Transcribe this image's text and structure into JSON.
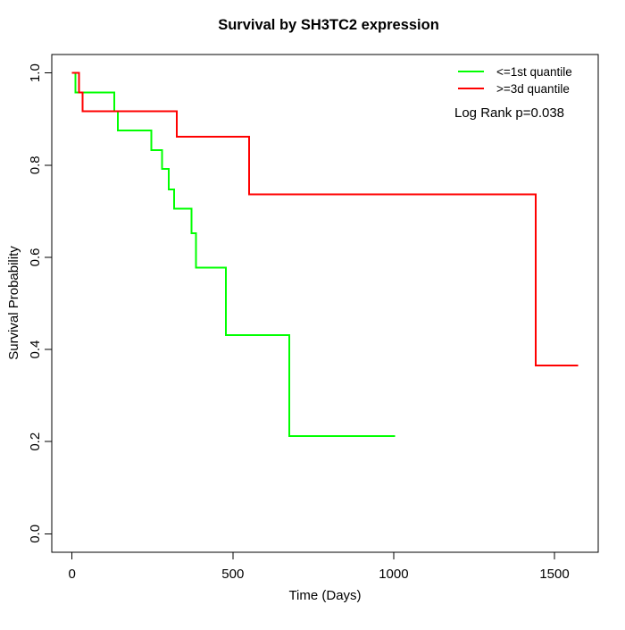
{
  "title": "Survival by SH3TC2 expression",
  "axes": {
    "x": {
      "label": "Time (Days)",
      "tick_labels": [
        "0",
        "500",
        "1000",
        "1500"
      ]
    },
    "y": {
      "label": "Survival Probability",
      "tick_labels": [
        "0.0",
        "0.2",
        "0.4",
        "0.6",
        "0.8",
        "1.0"
      ]
    }
  },
  "legend": {
    "items": [
      {
        "label": "<=1st quantile",
        "color": "#00FF00"
      },
      {
        "label": ">=3d quantile",
        "color": "#FF0000"
      }
    ]
  },
  "annotation": "Log Rank p=0.038",
  "chart_data": {
    "type": "line",
    "subtype": "kaplan-meier-step",
    "title": "Survival by SH3TC2 expression",
    "xlabel": "Time (Days)",
    "ylabel": "Survival Probability",
    "xlim": [
      -63,
      1636
    ],
    "ylim": [
      -0.04,
      1.04
    ],
    "x_ticks": [
      0,
      500,
      1000,
      1500
    ],
    "y_ticks": [
      0.0,
      0.2,
      0.4,
      0.6,
      0.8,
      1.0
    ],
    "grid": false,
    "legend_position": "topright",
    "series": [
      {
        "name": "<=1st quantile",
        "color": "#00FF00",
        "end_time": 1005,
        "steps": [
          [
            0,
            1.0
          ],
          [
            11,
            0.958
          ],
          [
            131,
            0.917
          ],
          [
            143,
            0.875
          ],
          [
            247,
            0.833
          ],
          [
            280,
            0.792
          ],
          [
            301,
            0.747
          ],
          [
            317,
            0.706
          ],
          [
            372,
            0.652
          ],
          [
            386,
            0.578
          ],
          [
            479,
            0.431
          ],
          [
            676,
            0.212
          ]
        ]
      },
      {
        "name": ">=3d quantile",
        "color": "#FF0000",
        "end_time": 1573,
        "steps": [
          [
            0,
            1.0
          ],
          [
            21,
            0.958
          ],
          [
            33,
            0.917
          ],
          [
            326,
            0.862
          ],
          [
            550,
            0.737
          ],
          [
            1442,
            0.365
          ]
        ]
      }
    ],
    "annotations": [
      {
        "text": "Log Rank p=0.038"
      }
    ]
  }
}
